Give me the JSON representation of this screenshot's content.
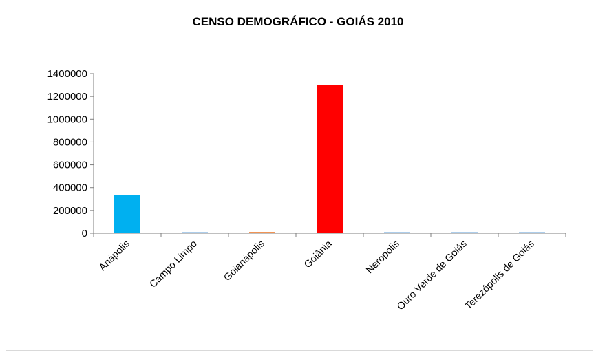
{
  "chart_data": {
    "type": "bar",
    "title": "CENSO DEMOGRÁFICO - GOIÁS 2010",
    "xlabel": "",
    "ylabel": "",
    "categories": [
      "Anápolis",
      "Campo Limpo",
      "Goianápolis",
      "Goiânia",
      "Nerópolis",
      "Ouro Verde de Goiás",
      "Terezópolis de Goiás"
    ],
    "values": [
      335000,
      7000,
      11000,
      1302000,
      5000,
      4000,
      6500
    ],
    "colors": [
      "#00b0f0",
      "#5b9bd5",
      "#ed7d31",
      "#ff0000",
      "#5b9bd5",
      "#5b9bd5",
      "#5b9bd5"
    ],
    "ylim": [
      0,
      1400000
    ],
    "yticks": [
      "0",
      "200000",
      "400000",
      "600000",
      "800000",
      "1000000",
      "1200000",
      "1400000"
    ],
    "grid": false,
    "legend": "none"
  }
}
